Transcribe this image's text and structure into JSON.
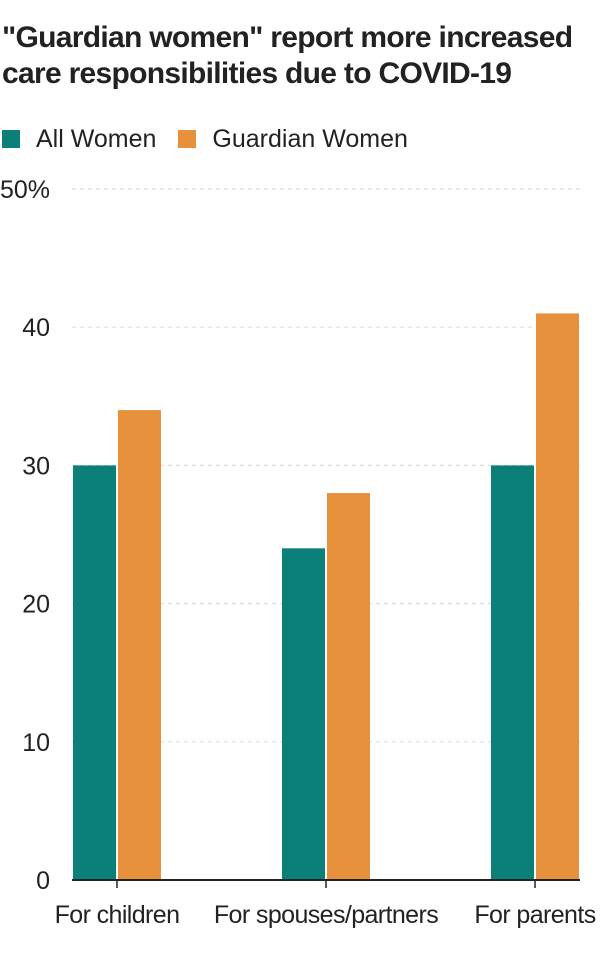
{
  "colors": {
    "all_women": "#0b8079",
    "guardian_women": "#e8913d",
    "gridline": "#dddddd",
    "axis": "#222222",
    "text": "#222222"
  },
  "chart_data": {
    "type": "bar",
    "title": "\"Guardian women\" report more increased care responsibilities due to COVID-19",
    "xlabel": "",
    "ylabel": "",
    "categories": [
      "For children",
      "For spouses/partners",
      "For parents"
    ],
    "series": [
      {
        "name": "All Women",
        "values": [
          30,
          24,
          30
        ]
      },
      {
        "name": "Guardian Women",
        "values": [
          34,
          28,
          41
        ]
      }
    ],
    "ylim": [
      0,
      50
    ],
    "y_ticks": [
      "0",
      "10",
      "20",
      "30",
      "40",
      "50%"
    ],
    "grid": true,
    "legend": "top-left"
  }
}
